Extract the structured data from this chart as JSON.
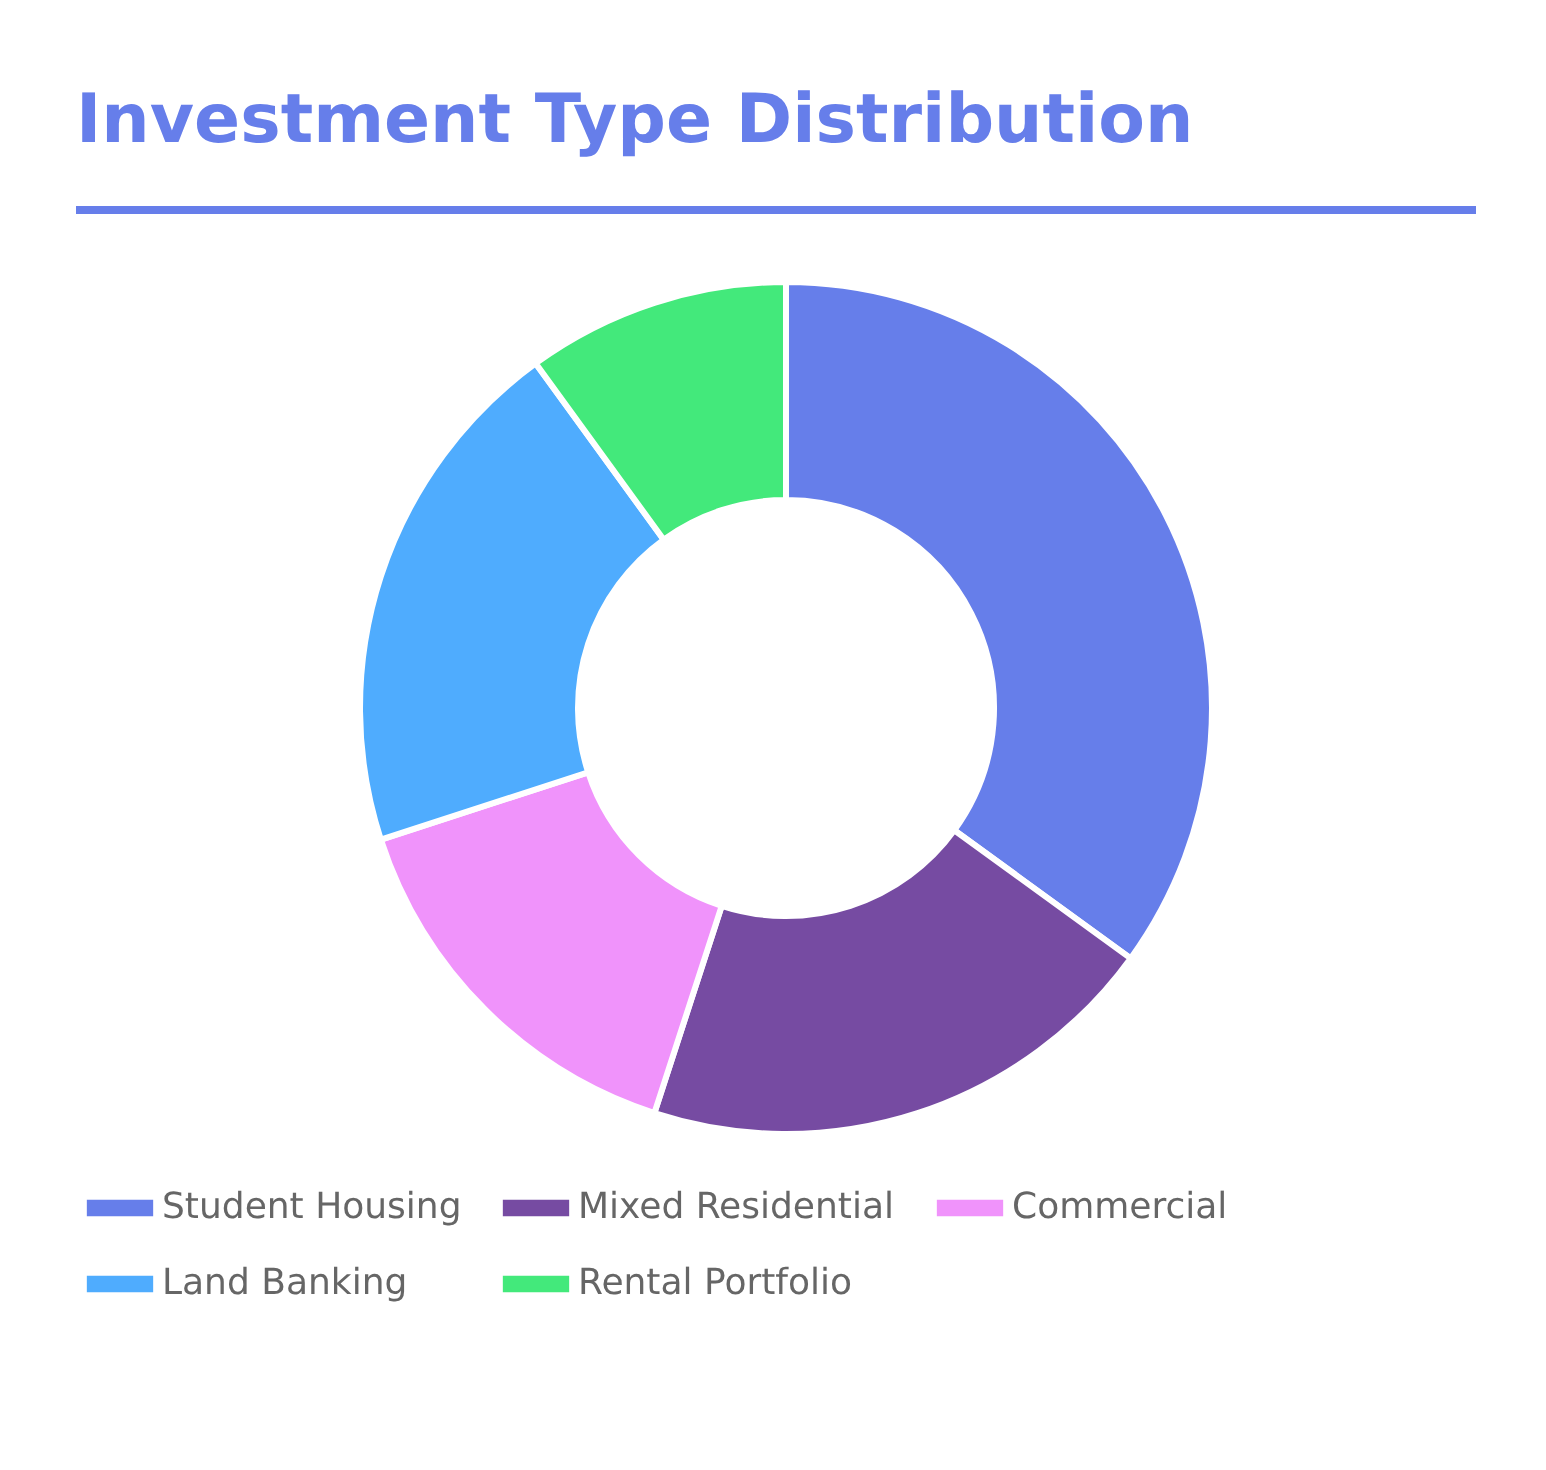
{
  "chart_data": {
    "type": "donut",
    "title": "Investment Type Distribution",
    "categories": [
      "Student Housing",
      "Mixed Residential",
      "Commercial",
      "Land Banking",
      "Rental Portfolio"
    ],
    "values": [
      35,
      20,
      15,
      20,
      10
    ],
    "colors": [
      "#667eea",
      "#764ba2",
      "#f093fb",
      "#4facfe",
      "#43e97b"
    ],
    "legend": "bottom"
  }
}
